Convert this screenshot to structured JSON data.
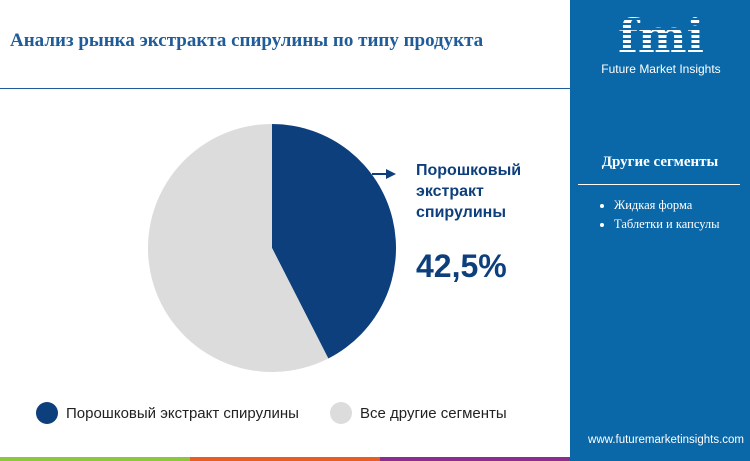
{
  "title": "Анализ рынка экстракта спирулины по типу продукта",
  "logo": {
    "text": "fmi",
    "subtitle": "Future Market Insights"
  },
  "side_panel": {
    "title": "Другие сегменты",
    "items": [
      "Жидкая форма",
      "Таблетки и капсулы"
    ],
    "url": "www.futuremarketinsights.com"
  },
  "chart_data": {
    "type": "pie",
    "slices": [
      {
        "label": "Порошковый экстракт спирулины",
        "value": 42.5,
        "color": "#0d3f7d"
      },
      {
        "label": "Все другие сегменты",
        "value": 57.5,
        "color": "#dcdcdc"
      }
    ],
    "callout": {
      "label": "Порошковый экстракт спирулины",
      "value_text": "42,5%"
    },
    "legend": "bottom"
  },
  "bottom_bar_colors": [
    "#8cc63f",
    "#e85d24",
    "#8b2d8e"
  ]
}
